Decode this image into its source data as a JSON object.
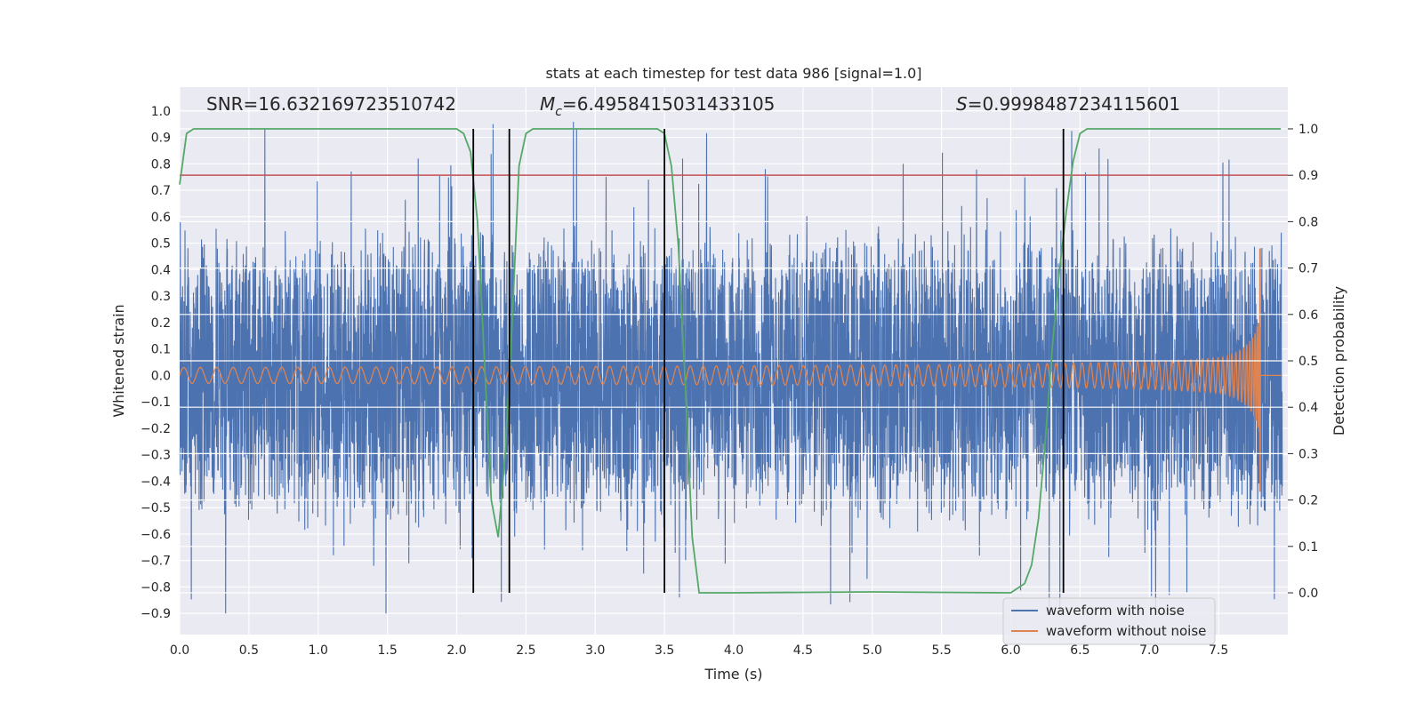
{
  "chart_data": {
    "type": "line",
    "title": "stats at each timestep for test data 986 [signal=1.0]",
    "xlabel": "Time (s)",
    "ylabel": "Whitened strain",
    "ylabel_right": "Detection probability",
    "xlim": [
      0.0,
      8.0
    ],
    "ylim": [
      -0.98,
      1.09
    ],
    "ylim_right": [
      -0.09,
      1.09
    ],
    "x_ticks": [
      "0.0",
      "0.5",
      "1.0",
      "1.5",
      "2.0",
      "2.5",
      "3.0",
      "3.5",
      "4.0",
      "4.5",
      "5.0",
      "5.5",
      "6.0",
      "6.5",
      "7.0",
      "7.5"
    ],
    "y_ticks": [
      "1.0",
      "0.9",
      "0.8",
      "0.7",
      "0.6",
      "0.5",
      "0.4",
      "0.3",
      "0.2",
      "0.1",
      "0.0",
      "−0.1",
      "−0.2",
      "−0.3",
      "−0.4",
      "−0.5",
      "−0.6",
      "−0.7",
      "−0.8",
      "−0.9"
    ],
    "y_ticks_right": [
      "1.0",
      "0.9",
      "0.8",
      "0.7",
      "0.6",
      "0.5",
      "0.4",
      "0.3",
      "0.2",
      "0.1",
      "0.0"
    ],
    "grid": true,
    "legend_position": "lower-right",
    "annotations": {
      "snr": "SNR=16.632169723510742",
      "mc_symbol": "M",
      "mc_sub": "c",
      "mc_value": "=6.4958415031433105",
      "s_symbol": "S",
      "s_value": "=0.9998487234115601"
    },
    "series": [
      {
        "name": "waveform with noise",
        "color": "#4c72b0",
        "envelope_amplitude": 0.6,
        "spike_max": 0.97,
        "spike_min": -0.9
      },
      {
        "name": "waveform without noise",
        "color": "#dd8452",
        "amplitude_start": 0.03,
        "amplitude_peak": 0.48,
        "merger_time": 7.8,
        "ringdown_min": -0.44
      }
    ],
    "detection_probability": {
      "color": "#55a868",
      "x": [
        0.0,
        0.05,
        0.1,
        2.0,
        2.05,
        2.1,
        2.15,
        2.2,
        2.25,
        2.3,
        2.35,
        2.4,
        2.45,
        2.5,
        2.55,
        3.45,
        3.5,
        3.55,
        3.6,
        3.65,
        3.7,
        3.75,
        3.8,
        4.0,
        5.0,
        6.0,
        6.1,
        6.15,
        6.2,
        6.25,
        6.3,
        6.35,
        6.4,
        6.45,
        6.5,
        6.55,
        7.95
      ],
      "y": [
        0.88,
        0.99,
        1.0,
        1.0,
        0.99,
        0.95,
        0.8,
        0.5,
        0.2,
        0.12,
        0.3,
        0.58,
        0.92,
        0.99,
        1.0,
        1.0,
        0.99,
        0.92,
        0.75,
        0.45,
        0.12,
        0.0,
        0.0,
        0.0,
        0.002,
        0.0,
        0.02,
        0.06,
        0.16,
        0.33,
        0.53,
        0.69,
        0.82,
        0.93,
        0.99,
        1.0,
        1.0
      ]
    },
    "threshold": {
      "value": 0.9,
      "color": "#c44e52"
    },
    "event_lines": [
      2.12,
      2.38,
      3.5,
      6.38
    ],
    "legend": [
      {
        "label": "waveform with noise",
        "color": "#4c72b0"
      },
      {
        "label": "waveform without noise",
        "color": "#dd8452"
      }
    ]
  }
}
